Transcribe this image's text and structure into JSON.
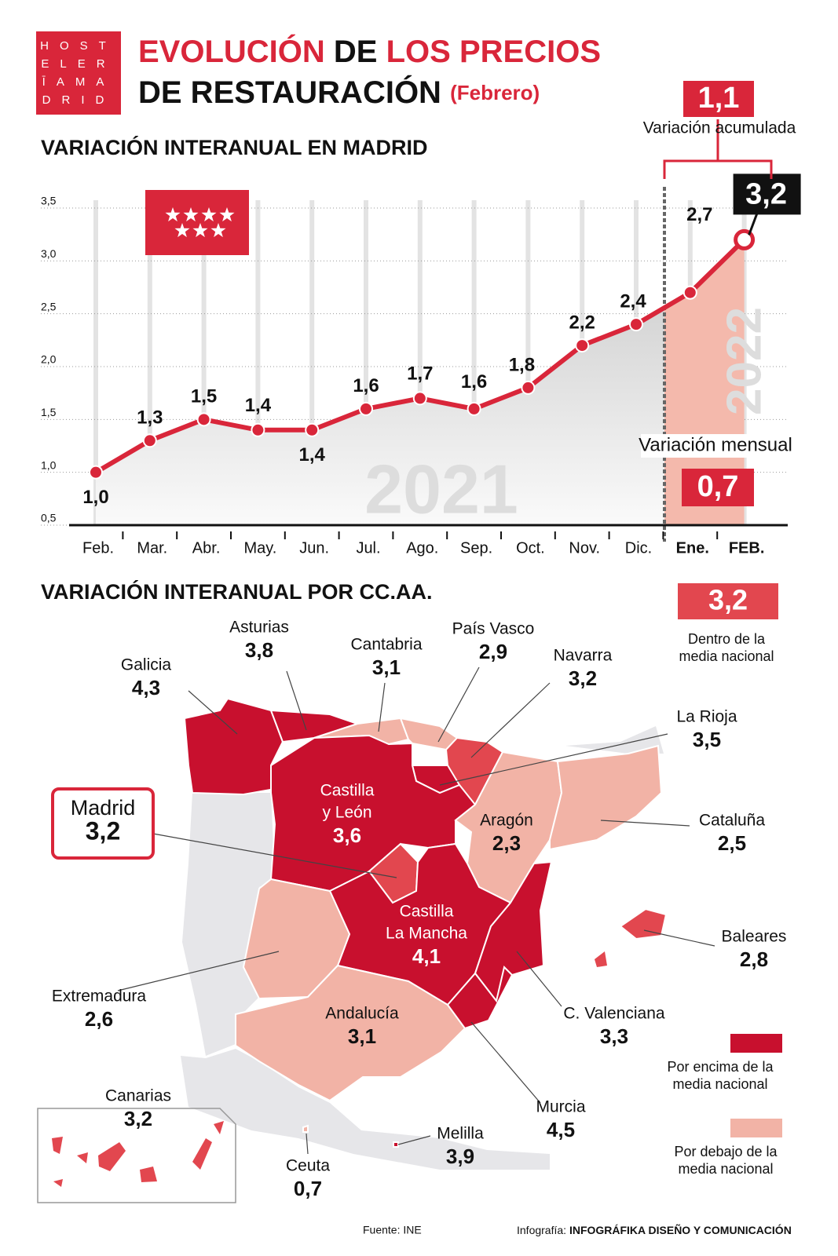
{
  "header": {
    "logo": [
      "HOST",
      "ELER",
      "ĪAMA",
      "DRID"
    ],
    "title_1a": "EVOLUCIÓN",
    "title_1b": "DE",
    "title_1c": "LOS PRECIOS",
    "title_2a": "DE RESTAURACIÓN",
    "title_2b": "(Febrero)"
  },
  "chart_data": {
    "type": "line",
    "title": "VARIACIÓN INTERANUAL EN MADRID",
    "categories": [
      "Feb.",
      "Mar.",
      "Abr.",
      "May.",
      "Jun.",
      "Jul.",
      "Ago.",
      "Sep.",
      "Oct.",
      "Nov.",
      "Dic.",
      "Ene.",
      "FEB."
    ],
    "values": [
      1.0,
      1.3,
      1.5,
      1.4,
      1.4,
      1.6,
      1.7,
      1.6,
      1.8,
      2.2,
      2.4,
      2.7,
      3.2
    ],
    "value_labels": [
      "1,0",
      "1,3",
      "1,5",
      "1,4",
      "1,4",
      "1,6",
      "1,7",
      "1,6",
      "1,8",
      "2,2",
      "2,4",
      "2,7",
      "3,2"
    ],
    "color": "#d9263a",
    "ylim": [
      0.5,
      3.5
    ],
    "yticks": [
      {
        "value": 0.5,
        "label": "0,5"
      },
      {
        "value": 1.0,
        "label": "1,0"
      },
      {
        "value": 1.5,
        "label": "1,5"
      },
      {
        "value": 2.0,
        "label": "2,0"
      },
      {
        "value": 2.5,
        "label": "2,5"
      },
      {
        "value": 3.0,
        "label": "3,0"
      },
      {
        "value": 3.5,
        "label": "3,5"
      }
    ],
    "grid": true,
    "year_labels": [
      "2021",
      "2022"
    ],
    "accumulated": {
      "label": "Variación acumulada",
      "value": "1,1"
    },
    "monthly": {
      "label": "Variación mensual",
      "value": "0,7"
    }
  },
  "map": {
    "title": "VARIACIÓN INTERANUAL POR CC.AA.",
    "regions": [
      {
        "name": [
          "Galicia"
        ],
        "value": "4,3",
        "color": "#c8102e"
      },
      {
        "name": [
          "Asturias"
        ],
        "value": "3,8",
        "color": "#c8102e"
      },
      {
        "name": [
          "Cantabria"
        ],
        "value": "3,1",
        "color": "#f2b3a6"
      },
      {
        "name": [
          "País Vasco"
        ],
        "value": "2,9",
        "color": "#f2b3a6"
      },
      {
        "name": [
          "Navarra"
        ],
        "value": "3,2",
        "color": "#e2474f"
      },
      {
        "name": [
          "La Rioja"
        ],
        "value": "3,5",
        "color": "#c8102e"
      },
      {
        "name": [
          "Castilla",
          "y León"
        ],
        "value": "3,6",
        "color": "#c8102e"
      },
      {
        "name": [
          "Madrid"
        ],
        "value": "3,2",
        "color": "#e2474f"
      },
      {
        "name": [
          "Aragón"
        ],
        "value": "2,3",
        "color": "#f2b3a6"
      },
      {
        "name": [
          "Cataluña"
        ],
        "value": "2,5",
        "color": "#f2b3a6"
      },
      {
        "name": [
          "Castilla",
          "La Mancha"
        ],
        "value": "4,1",
        "color": "#c8102e"
      },
      {
        "name": [
          "Baleares"
        ],
        "value": "2,8",
        "color": "#e2474f"
      },
      {
        "name": [
          "Extremadura"
        ],
        "value": "2,6",
        "color": "#f2b3a6"
      },
      {
        "name": [
          "Andalucía"
        ],
        "value": "3,1",
        "color": "#f2b3a6"
      },
      {
        "name": [
          "C. Valenciana"
        ],
        "value": "3,3",
        "color": "#c8102e"
      },
      {
        "name": [
          "Murcia"
        ],
        "value": "4,5",
        "color": "#c8102e"
      },
      {
        "name": [
          "Canarias"
        ],
        "value": "3,2",
        "color": "#e2474f"
      },
      {
        "name": [
          "Ceuta"
        ],
        "value": "0,7",
        "color": "#f2b3a6"
      },
      {
        "name": [
          "Melilla"
        ],
        "value": "3,9",
        "color": "#c8102e"
      }
    ],
    "legend": [
      {
        "value": "3,2",
        "label": [
          "Dentro de la",
          "media nacional"
        ],
        "color": "#e2474f"
      },
      {
        "label": [
          "Por encima de la",
          "media nacional"
        ],
        "color": "#c8102e"
      },
      {
        "label": [
          "Por debajo de la",
          "media nacional"
        ],
        "color": "#f2b3a6"
      }
    ]
  },
  "footer": {
    "source": "Fuente: INE",
    "credit_label": "Infografía:",
    "credit_name": "INFOGRÁFIKA DISEÑO Y COMUNICACIÓN"
  }
}
